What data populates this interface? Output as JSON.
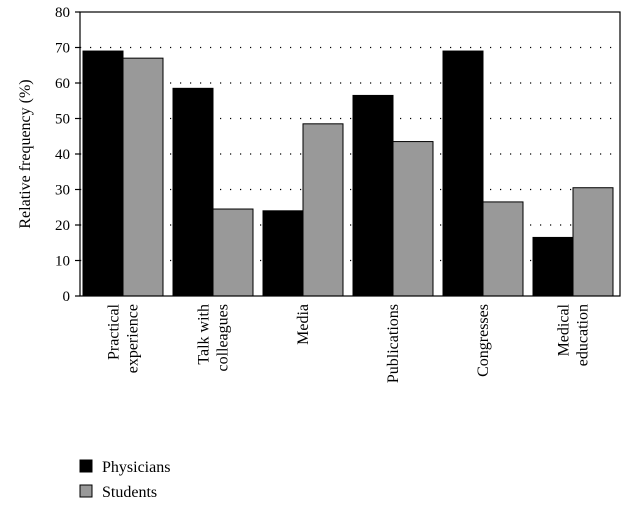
{
  "chart_data": {
    "type": "bar",
    "title": "",
    "xlabel": "",
    "ylabel": "Relative frequency (%)",
    "ylim": [
      0,
      80
    ],
    "yticks": [
      0,
      10,
      20,
      30,
      40,
      50,
      60,
      70,
      80
    ],
    "grid": "horizontal dotted",
    "legend_position": "bottom-left",
    "categories": [
      [
        "Practical",
        "experience"
      ],
      [
        "Talk with",
        "colleagues"
      ],
      [
        "Media"
      ],
      [
        "Publications"
      ],
      [
        "Congresses"
      ],
      [
        "Medical",
        "education"
      ]
    ],
    "series": [
      {
        "name": "Physicians",
        "color": "#000000",
        "values": [
          69,
          58.5,
          24,
          56.5,
          69,
          16.5
        ]
      },
      {
        "name": "Students",
        "color": "#999999",
        "values": [
          67,
          24.5,
          48.5,
          43.5,
          26.5,
          30.5
        ]
      }
    ]
  }
}
